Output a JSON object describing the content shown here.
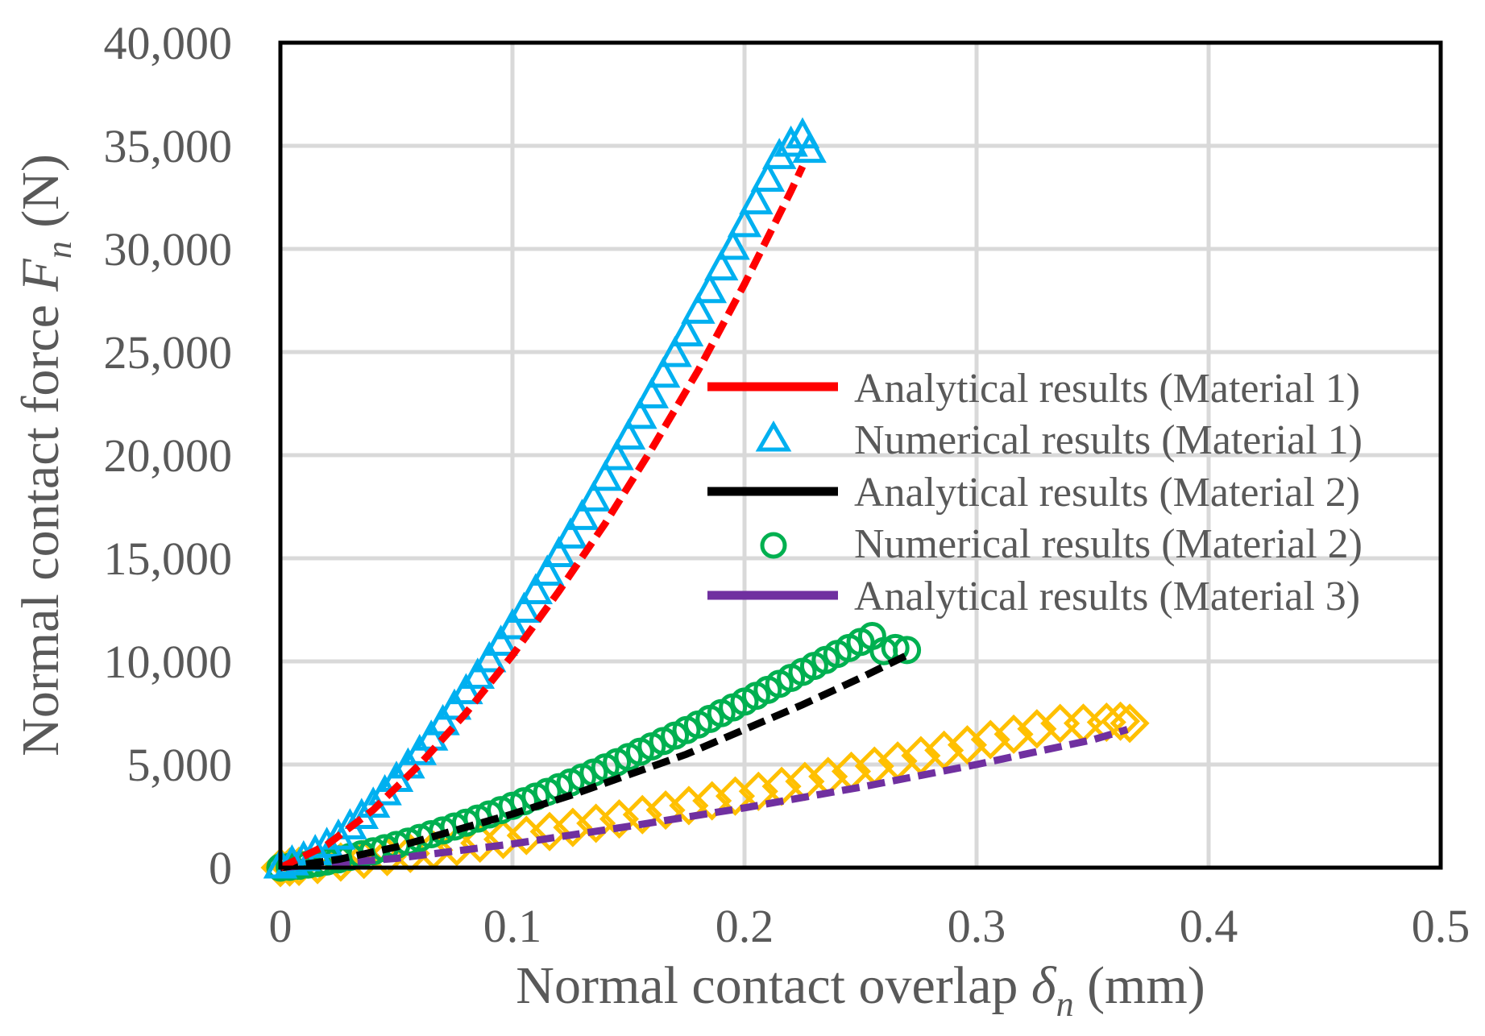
{
  "chart_data": {
    "type": "scatter",
    "title": "",
    "xlabel": {
      "prefix": "Normal contact overlap ",
      "symbol": "δ",
      "sub": "n",
      "suffix": " (mm)"
    },
    "ylabel": {
      "prefix": "Normal contact force ",
      "symbol": "F",
      "sub": "n",
      "suffix": " (N)"
    },
    "xlim": [
      0,
      0.5
    ],
    "ylim": [
      0,
      40000
    ],
    "xticks": [
      0,
      0.1,
      0.2,
      0.3,
      0.4,
      0.5
    ],
    "xtick_labels": [
      "0",
      "0.1",
      "0.2",
      "0.3",
      "0.4",
      "0.5"
    ],
    "yticks": [
      0,
      5000,
      10000,
      15000,
      20000,
      25000,
      30000,
      35000,
      40000
    ],
    "ytick_labels": [
      "0",
      "5,000",
      "10,000",
      "15,000",
      "20,000",
      "25,000",
      "30,000",
      "35,000",
      "40,000"
    ],
    "grid": true,
    "legend_position": "center-right",
    "series": [
      {
        "name": "Analytical results (Material 1)",
        "kind": "line",
        "color": "#ff0000",
        "dashed": true,
        "x": [
          0,
          0.02,
          0.04,
          0.06,
          0.08,
          0.1,
          0.12,
          0.14,
          0.16,
          0.18,
          0.2,
          0.22,
          0.225
        ],
        "y": [
          0,
          1100,
          2800,
          5000,
          7500,
          10300,
          13400,
          16700,
          20300,
          24100,
          28300,
          32800,
          34000
        ]
      },
      {
        "name": "Numerical results (Material 1)",
        "kind": "marker",
        "marker": "triangle",
        "color": "#00b0f0",
        "x": [
          0,
          0.005,
          0.01,
          0.015,
          0.02,
          0.025,
          0.03,
          0.035,
          0.04,
          0.045,
          0.05,
          0.055,
          0.06,
          0.065,
          0.07,
          0.075,
          0.08,
          0.085,
          0.09,
          0.095,
          0.1,
          0.105,
          0.11,
          0.115,
          0.12,
          0.125,
          0.13,
          0.135,
          0.14,
          0.145,
          0.15,
          0.155,
          0.16,
          0.165,
          0.17,
          0.175,
          0.18,
          0.185,
          0.19,
          0.195,
          0.2,
          0.205,
          0.21,
          0.215,
          0.22,
          0.225,
          0.228
        ],
        "y": [
          0,
          150,
          350,
          650,
          1000,
          1400,
          1900,
          2400,
          2950,
          3550,
          4200,
          4850,
          5500,
          6200,
          6950,
          7700,
          8450,
          9200,
          10000,
          10800,
          11600,
          12400,
          13300,
          14200,
          15100,
          16000,
          16900,
          17800,
          18800,
          19800,
          20800,
          21800,
          22800,
          23800,
          24800,
          25800,
          26900,
          27900,
          29000,
          30000,
          31100,
          32200,
          33300,
          34400,
          35000,
          35400,
          34700
        ]
      },
      {
        "name": "Analytical results (Material 2)",
        "kind": "line",
        "color": "#000000",
        "dashed": true,
        "x": [
          0,
          0.025,
          0.05,
          0.075,
          0.1,
          0.125,
          0.15,
          0.175,
          0.2,
          0.225,
          0.25,
          0.27
        ],
        "y": [
          0,
          400,
          1000,
          1800,
          2600,
          3500,
          4500,
          5500,
          6700,
          7900,
          9200,
          10300
        ]
      },
      {
        "name": "Numerical results (Material 2)",
        "kind": "marker",
        "marker": "circle",
        "color": "#00b050",
        "x": [
          0,
          0.004,
          0.008,
          0.012,
          0.016,
          0.02,
          0.025,
          0.03,
          0.035,
          0.04,
          0.045,
          0.05,
          0.055,
          0.06,
          0.065,
          0.07,
          0.075,
          0.08,
          0.085,
          0.09,
          0.095,
          0.1,
          0.105,
          0.11,
          0.115,
          0.12,
          0.125,
          0.13,
          0.135,
          0.14,
          0.145,
          0.15,
          0.155,
          0.16,
          0.165,
          0.17,
          0.175,
          0.18,
          0.185,
          0.19,
          0.195,
          0.2,
          0.205,
          0.21,
          0.215,
          0.22,
          0.225,
          0.23,
          0.235,
          0.24,
          0.245,
          0.25,
          0.255,
          0.26,
          0.265,
          0.27
        ],
        "y": [
          0,
          40,
          90,
          150,
          220,
          300,
          400,
          520,
          650,
          790,
          940,
          1100,
          1260,
          1440,
          1620,
          1800,
          1990,
          2180,
          2380,
          2580,
          2790,
          3000,
          3220,
          3440,
          3670,
          3900,
          4130,
          4370,
          4610,
          4860,
          5110,
          5360,
          5620,
          5880,
          6140,
          6400,
          6670,
          6940,
          7210,
          7490,
          7770,
          8050,
          8330,
          8620,
          8910,
          9200,
          9490,
          9780,
          10070,
          10360,
          10650,
          10940,
          11230,
          10500,
          10650,
          10550
        ]
      },
      {
        "name": "Analytical results (Material 3)",
        "kind": "line",
        "color": "#7030a0",
        "dashed": true,
        "x": [
          0,
          0.05,
          0.1,
          0.15,
          0.2,
          0.25,
          0.3,
          0.35,
          0.365
        ],
        "y": [
          0,
          450,
          1150,
          2000,
          2900,
          3900,
          5000,
          6200,
          6700
        ]
      },
      {
        "name": "",
        "kind": "marker",
        "marker": "diamond",
        "color": "#ffc000",
        "x": [
          0,
          0.004,
          0.008,
          0.016,
          0.026,
          0.036,
          0.046,
          0.056,
          0.066,
          0.076,
          0.086,
          0.096,
          0.106,
          0.116,
          0.126,
          0.136,
          0.146,
          0.156,
          0.166,
          0.176,
          0.186,
          0.196,
          0.206,
          0.216,
          0.226,
          0.236,
          0.246,
          0.256,
          0.266,
          0.276,
          0.286,
          0.296,
          0.306,
          0.316,
          0.326,
          0.336,
          0.346,
          0.356,
          0.362,
          0.366
        ],
        "y": [
          0,
          30,
          60,
          150,
          270,
          400,
          540,
          690,
          850,
          1020,
          1190,
          1370,
          1560,
          1750,
          1950,
          2150,
          2360,
          2570,
          2790,
          3010,
          3240,
          3470,
          3700,
          3940,
          4180,
          4420,
          4670,
          4920,
          5170,
          5430,
          5690,
          5950,
          6210,
          6470,
          6730,
          6990,
          7000,
          7050,
          7100,
          7000
        ]
      }
    ],
    "legend": [
      "Analytical results (Material 1)",
      "Numerical results (Material 1)",
      "Analytical results (Material 2)",
      "Numerical results (Material 2)",
      "Analytical results (Material 3)"
    ]
  }
}
